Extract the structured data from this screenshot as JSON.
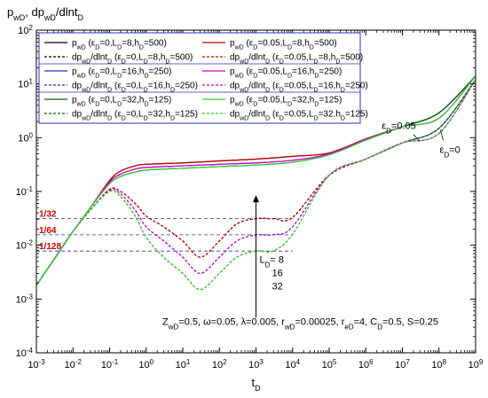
{
  "chart_data": {
    "type": "line",
    "title": "",
    "ylabel": "p_wD, dp_wD/dlnt_D",
    "xlabel": "t_D",
    "xscale": "log",
    "yscale": "log",
    "xlim": [
      0.001,
      1000000000
    ],
    "ylim": [
      0.0001,
      100
    ],
    "grid": false,
    "x_ticks": [
      "10^-3",
      "10^-2",
      "10^-1",
      "10^0",
      "10^1",
      "10^2",
      "10^3",
      "10^4",
      "10^5",
      "10^6",
      "10^7",
      "10^8",
      "10^9"
    ],
    "y_ticks": [
      "10^-4",
      "10^-3",
      "10^-2",
      "10^-1",
      "10^0",
      "10^1",
      "10^2"
    ],
    "legend_position": "top-left",
    "series": [
      {
        "name": "p_wD (ε_D=0, L_D=8, h_D=500)",
        "color": "#000000",
        "dash": "solid",
        "x": [
          0.001,
          0.003,
          0.01,
          0.03,
          0.1,
          0.2,
          0.5,
          1,
          10,
          100,
          1000,
          10000,
          100000,
          1000000,
          10000000,
          100000000,
          1000000000
        ],
        "y": [
          0.0018,
          0.0054,
          0.018,
          0.05,
          0.16,
          0.24,
          0.3,
          0.32,
          0.34,
          0.37,
          0.4,
          0.45,
          0.52,
          0.95,
          1.6,
          2.9,
          14
        ]
      },
      {
        "name": "p_wD (ε_D=0.05, L_D=8, h_D=500)",
        "color": "#cc0000",
        "dash": "solid",
        "x": [
          0.001,
          0.003,
          0.01,
          0.03,
          0.1,
          0.2,
          0.5,
          1,
          10,
          100,
          1000,
          10000,
          100000,
          1000000,
          10000000,
          100000000,
          1000000000
        ],
        "y": [
          0.0018,
          0.0054,
          0.018,
          0.05,
          0.16,
          0.24,
          0.3,
          0.32,
          0.34,
          0.37,
          0.4,
          0.45,
          0.52,
          0.95,
          1.6,
          2.3,
          14
        ]
      },
      {
        "name": "dp_wD/dlnt_D (ε_D=0, L_D=8, h_D=500)",
        "color": "#000000",
        "dash": "dashed",
        "x": [
          0.001,
          0.003,
          0.01,
          0.03,
          0.1,
          0.2,
          0.5,
          1,
          3,
          10,
          30,
          100,
          300,
          1000,
          3000,
          10000,
          100000,
          1000000,
          10000000,
          100000000,
          1000000000
        ],
        "y": [
          0.0018,
          0.0054,
          0.018,
          0.045,
          0.11,
          0.1,
          0.06,
          0.035,
          0.022,
          0.012,
          0.006,
          0.012,
          0.025,
          0.03125,
          0.0313,
          0.033,
          0.2,
          0.4,
          0.8,
          1.5,
          12
        ]
      },
      {
        "name": "dp_wD/dlnt_D (ε_D=0.05, L_D=8, h_D=500)",
        "color": "#cc0000",
        "dash": "dashed",
        "x": [
          0.001,
          0.003,
          0.01,
          0.03,
          0.1,
          0.2,
          0.5,
          1,
          3,
          10,
          30,
          100,
          300,
          1000,
          3000,
          10000,
          100000,
          1000000,
          10000000,
          100000000,
          1000000000
        ],
        "y": [
          0.0018,
          0.0054,
          0.018,
          0.045,
          0.11,
          0.1,
          0.06,
          0.035,
          0.022,
          0.012,
          0.006,
          0.012,
          0.025,
          0.03125,
          0.0313,
          0.033,
          0.2,
          0.4,
          0.8,
          1.2,
          12
        ]
      },
      {
        "name": "p_wD (ε_D=0, L_D=16, h_D=250)",
        "color": "#2f2fbf",
        "dash": "solid",
        "x": [
          0.001,
          0.003,
          0.01,
          0.03,
          0.1,
          0.2,
          0.5,
          1,
          10,
          100,
          1000,
          10000,
          100000,
          1000000,
          10000000,
          100000000,
          1000000000
        ],
        "y": [
          0.0018,
          0.0054,
          0.018,
          0.05,
          0.15,
          0.21,
          0.26,
          0.28,
          0.3,
          0.32,
          0.34,
          0.38,
          0.5,
          0.93,
          1.6,
          2.9,
          14
        ]
      },
      {
        "name": "p_wD (ε_D=0.05, L_D=16, h_D=250)",
        "color": "#cc00cc",
        "dash": "solid",
        "x": [
          0.001,
          0.003,
          0.01,
          0.03,
          0.1,
          0.2,
          0.5,
          1,
          10,
          100,
          1000,
          10000,
          100000,
          1000000,
          10000000,
          100000000,
          1000000000
        ],
        "y": [
          0.0018,
          0.0054,
          0.018,
          0.05,
          0.15,
          0.21,
          0.26,
          0.28,
          0.3,
          0.32,
          0.34,
          0.38,
          0.5,
          0.93,
          1.6,
          2.3,
          14
        ]
      },
      {
        "name": "dp_wD/dlnt_D (ε_D=0, L_D=16, h_D=250)",
        "color": "#2f2fbf",
        "dash": "dashed",
        "x": [
          0.001,
          0.003,
          0.01,
          0.03,
          0.1,
          0.2,
          0.5,
          1,
          3,
          10,
          30,
          100,
          300,
          1000,
          3000,
          10000,
          100000,
          1000000,
          10000000,
          100000000,
          1000000000
        ],
        "y": [
          0.0018,
          0.0054,
          0.018,
          0.045,
          0.105,
          0.09,
          0.045,
          0.022,
          0.012,
          0.006,
          0.003,
          0.006,
          0.012,
          0.0156,
          0.0157,
          0.022,
          0.2,
          0.4,
          0.8,
          1.5,
          12
        ]
      },
      {
        "name": "dp_wD/dlnt_D (ε_D=0.05, L_D=16, h_D=250)",
        "color": "#cc00cc",
        "dash": "dashed",
        "x": [
          0.001,
          0.003,
          0.01,
          0.03,
          0.1,
          0.2,
          0.5,
          1,
          3,
          10,
          30,
          100,
          300,
          1000,
          3000,
          10000,
          100000,
          1000000,
          10000000,
          100000000,
          1000000000
        ],
        "y": [
          0.0018,
          0.0054,
          0.018,
          0.045,
          0.105,
          0.09,
          0.045,
          0.022,
          0.012,
          0.006,
          0.003,
          0.006,
          0.012,
          0.0156,
          0.0157,
          0.022,
          0.2,
          0.4,
          0.8,
          1.2,
          12
        ]
      },
      {
        "name": "p_wD (ε_D=0, L_D=32, h_D=125)",
        "color": "#006400",
        "dash": "solid",
        "x": [
          0.001,
          0.003,
          0.01,
          0.03,
          0.1,
          0.2,
          0.5,
          1,
          10,
          100,
          1000,
          10000,
          100000,
          1000000,
          10000000,
          100000000,
          1000000000
        ],
        "y": [
          0.0018,
          0.0054,
          0.018,
          0.05,
          0.14,
          0.19,
          0.23,
          0.25,
          0.27,
          0.29,
          0.31,
          0.35,
          0.48,
          0.9,
          1.6,
          2.9,
          14
        ]
      },
      {
        "name": "p_wD (ε_D=0.05, L_D=32, h_D=125)",
        "color": "#33cc33",
        "dash": "solid",
        "x": [
          0.001,
          0.003,
          0.01,
          0.03,
          0.1,
          0.2,
          0.5,
          1,
          10,
          100,
          1000,
          10000,
          100000,
          1000000,
          10000000,
          100000000,
          1000000000
        ],
        "y": [
          0.0018,
          0.0054,
          0.018,
          0.05,
          0.14,
          0.19,
          0.23,
          0.25,
          0.27,
          0.29,
          0.31,
          0.35,
          0.48,
          0.9,
          1.6,
          2.3,
          14
        ]
      },
      {
        "name": "dp_wD/dlnt_D (ε_D=0, L_D=32, h_D=125)",
        "color": "#006400",
        "dash": "dashed",
        "x": [
          0.001,
          0.003,
          0.01,
          0.03,
          0.1,
          0.2,
          0.5,
          1,
          3,
          10,
          30,
          100,
          300,
          1000,
          3000,
          10000,
          100000,
          1000000,
          10000000,
          100000000,
          1000000000
        ],
        "y": [
          0.0018,
          0.0054,
          0.018,
          0.045,
          0.1,
          0.08,
          0.035,
          0.014,
          0.006,
          0.003,
          0.0015,
          0.003,
          0.006,
          0.0078,
          0.0079,
          0.016,
          0.2,
          0.4,
          0.8,
          1.5,
          12
        ]
      },
      {
        "name": "dp_wD/dlnt_D (ε_D=0.05, L_D=32, h_D=125)",
        "color": "#33cc33",
        "dash": "dashed",
        "x": [
          0.001,
          0.003,
          0.01,
          0.03,
          0.1,
          0.2,
          0.5,
          1,
          3,
          10,
          30,
          100,
          300,
          1000,
          3000,
          10000,
          100000,
          1000000,
          10000000,
          100000000,
          1000000000
        ],
        "y": [
          0.0018,
          0.0054,
          0.018,
          0.045,
          0.1,
          0.08,
          0.035,
          0.014,
          0.006,
          0.003,
          0.0015,
          0.003,
          0.006,
          0.0078,
          0.0079,
          0.016,
          0.2,
          0.4,
          0.8,
          1.2,
          12
        ]
      }
    ],
    "reference_lines": [
      {
        "label": "1/32",
        "y": 0.03125,
        "color": "#2f2fbf",
        "label_color": "#cc0000"
      },
      {
        "label": "1/64",
        "y": 0.015625,
        "color": "#2f2fbf",
        "label_color": "#cc0000"
      },
      {
        "label": "1/128",
        "y": 0.0078125,
        "color": "#2f2fbf",
        "label_color": "#cc0000"
      }
    ],
    "annotations": {
      "ld_label": "L_D= 8",
      "ld_values": [
        "16",
        "32"
      ],
      "eps_005": "ε_D=0.05",
      "eps_0": "ε_D=0",
      "params": "Z_wD=0.5, ω=0.05, λ=0.005, r_wD=0.00025, r_eD=4, C_D=0.5, S=0.25"
    },
    "legend_rows": [
      [
        {
          "series": 0,
          "text": "p_wD (ε_D=0,L_D=8,h_D=500)"
        },
        {
          "series": 1,
          "text": "p_wD (ε_D=0.05,L_D=8,h_D=500)"
        }
      ],
      [
        {
          "series": 2,
          "text": "dp_wD/dlnt_D (ε_D=0,L_D=8,h_D=500)"
        },
        {
          "series": 3,
          "text": "dp_wD/dlnt_D (ε_D=0.05,L_D=8,h_D=500)"
        }
      ],
      [
        {
          "series": 4,
          "text": "p_wD (ε_D=0,L_D=16,h_D=250)"
        },
        {
          "series": 5,
          "text": "p_wD (ε_D=0.05,L_D=16,h_D=250)"
        }
      ],
      [
        {
          "series": 6,
          "text": "dp_wD/dlnt_D (ε_D=0,L_D=16,h_D=250)"
        },
        {
          "series": 7,
          "text": "dp_wD/dlnt_D (ε_D=0.05,L_D=16,h_D=250)"
        }
      ],
      [
        {
          "series": 8,
          "text": "p_wD (ε_D=0,L_D=32,h_D=125)"
        },
        {
          "series": 9,
          "text": "p_wD (ε_D=0.05,L_D=32,h_D=125)"
        }
      ],
      [
        {
          "series": 10,
          "text": "dp_wD/dlnt_D (ε_D=0,L_D=32,h_D=125)"
        },
        {
          "series": 11,
          "text": "dp_wD/dlnt_D (ε_D=0.05,L_D=32,h_D=125)"
        }
      ]
    ]
  }
}
